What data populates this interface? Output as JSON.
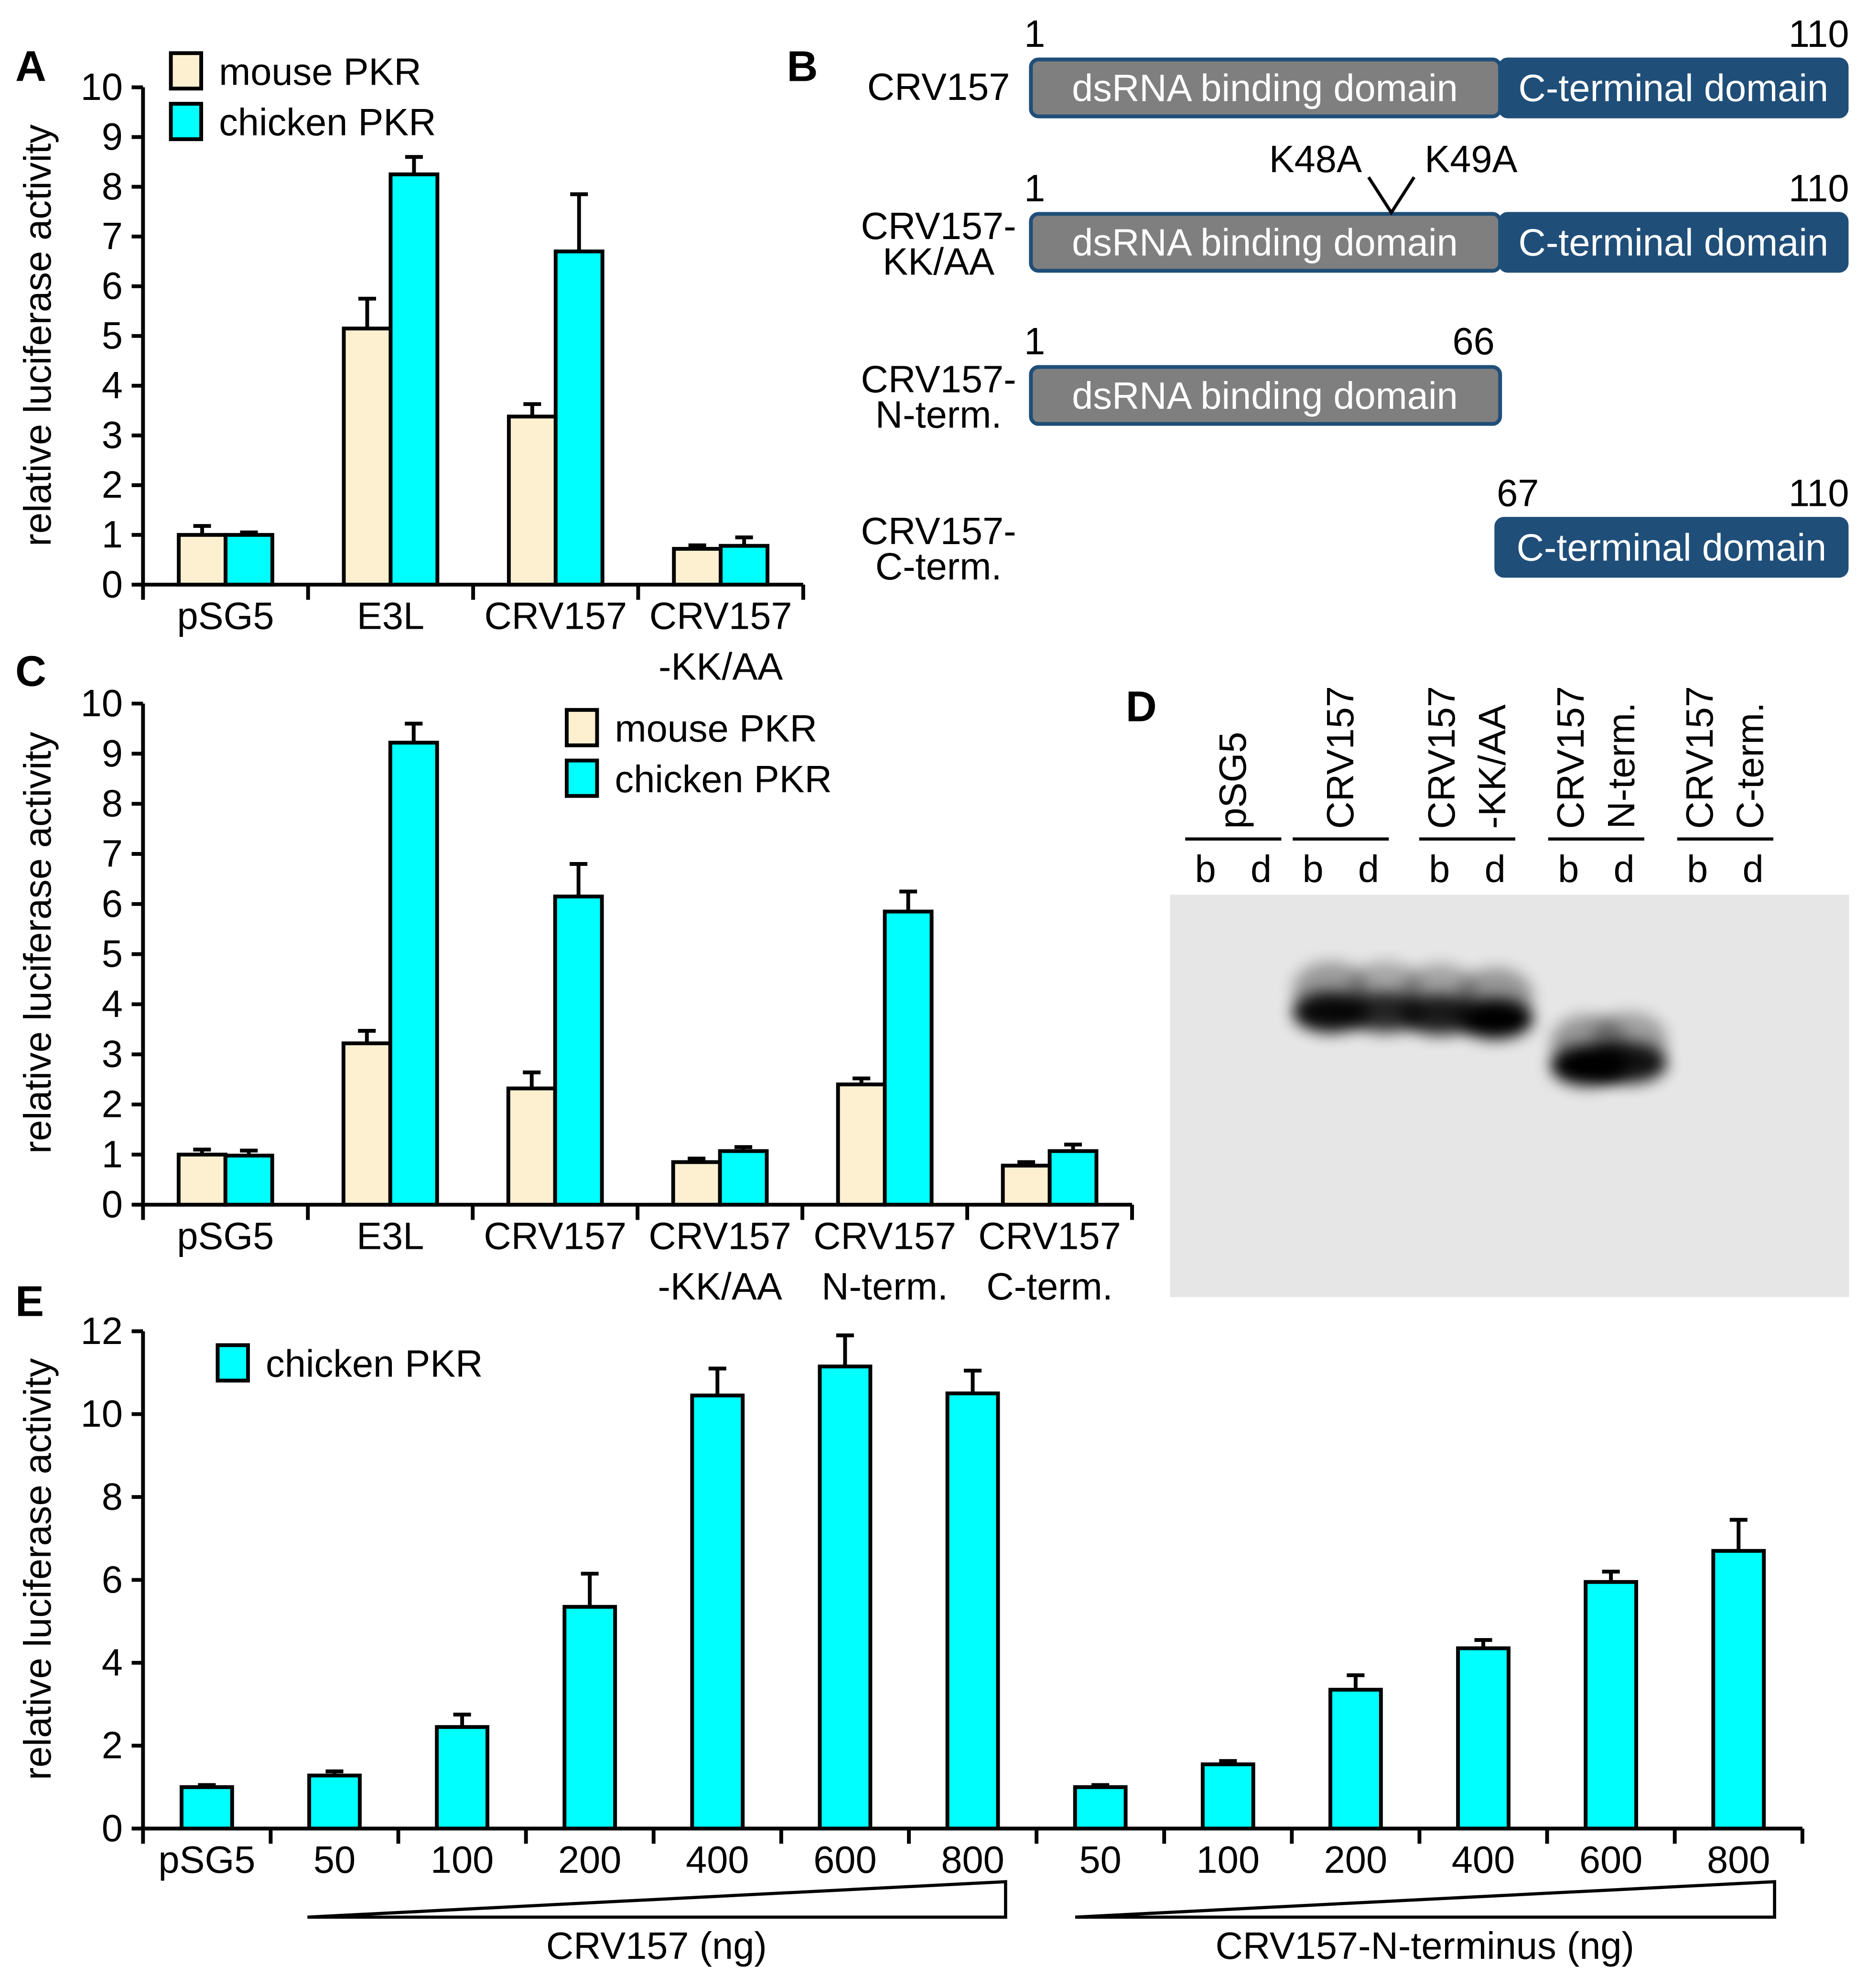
{
  "colors": {
    "mouse": "#fdf0d0",
    "chicken": "#00ffff",
    "gray_domain": "#7f7f7f",
    "blue_domain": "#1f4e79",
    "blot_bg": "#e6e6e6"
  },
  "chart_data": [
    {
      "panel": "A",
      "type": "bar",
      "ylabel": "relative luciferase activity",
      "ylim": [
        0,
        10
      ],
      "yticks": [
        0,
        1,
        2,
        3,
        4,
        5,
        6,
        7,
        8,
        9,
        10
      ],
      "categories": [
        [
          "pSG5"
        ],
        [
          "E3L"
        ],
        [
          "CRV157"
        ],
        [
          "CRV157",
          "-KK/AA"
        ]
      ],
      "legend": "top-left",
      "series": [
        {
          "name": "mouse PKR",
          "values": [
            1.0,
            5.15,
            3.38,
            0.72
          ],
          "errors": [
            0.18,
            0.6,
            0.25,
            0.07
          ]
        },
        {
          "name": "chicken PKR",
          "values": [
            1.0,
            8.25,
            6.7,
            0.78
          ],
          "errors": [
            0.05,
            0.35,
            1.15,
            0.17
          ]
        }
      ]
    },
    {
      "panel": "C",
      "type": "bar",
      "ylabel": "relative luciferase activity",
      "ylim": [
        0,
        10
      ],
      "yticks": [
        0,
        1,
        2,
        3,
        4,
        5,
        6,
        7,
        8,
        9,
        10
      ],
      "categories": [
        [
          "pSG5"
        ],
        [
          "E3L"
        ],
        [
          "CRV157"
        ],
        [
          "CRV157",
          "-KK/AA"
        ],
        [
          "CRV157",
          "N-term."
        ],
        [
          "CRV157",
          "C-term."
        ]
      ],
      "legend": "top-center",
      "series": [
        {
          "name": "mouse PKR",
          "values": [
            1.0,
            3.22,
            2.32,
            0.85,
            2.4,
            0.78
          ],
          "errors": [
            0.1,
            0.25,
            0.32,
            0.07,
            0.12,
            0.07
          ]
        },
        {
          "name": "chicken PKR",
          "values": [
            0.98,
            9.22,
            6.15,
            1.07,
            5.85,
            1.07
          ],
          "errors": [
            0.1,
            0.38,
            0.65,
            0.08,
            0.4,
            0.13
          ]
        }
      ]
    },
    {
      "panel": "E",
      "type": "bar",
      "ylabel": "relative luciferase activity",
      "ylim": [
        0,
        12
      ],
      "yticks": [
        0,
        2,
        4,
        6,
        8,
        10,
        12
      ],
      "categories": [
        [
          "pSG5"
        ],
        [
          "50"
        ],
        [
          "100"
        ],
        [
          "200"
        ],
        [
          "400"
        ],
        [
          "600"
        ],
        [
          "800"
        ],
        [
          "50"
        ],
        [
          "100"
        ],
        [
          "200"
        ],
        [
          "400"
        ],
        [
          "600"
        ],
        [
          "800"
        ]
      ],
      "groups": [
        "CRV157 (ng)",
        "CRV157-N-terminus (ng)"
      ],
      "legend": "top-left",
      "series": [
        {
          "name": "chicken PKR",
          "values": [
            1.0,
            1.28,
            2.45,
            5.35,
            10.45,
            11.15,
            10.5,
            1.0,
            1.55,
            3.35,
            4.35,
            5.95,
            6.7
          ],
          "errors": [
            0.05,
            0.1,
            0.3,
            0.8,
            0.65,
            0.75,
            0.55,
            0.05,
            0.08,
            0.35,
            0.2,
            0.25,
            0.75
          ]
        }
      ]
    }
  ],
  "panelB": {
    "label": "B",
    "rows": [
      {
        "name": "CRV157",
        "start": "1",
        "end": "110"
      },
      {
        "name": "CRV157-",
        "name2": "KK/AA",
        "start": "1",
        "end": "110",
        "mut1": "K48A",
        "mut2": "K49A"
      },
      {
        "name": "CRV157-",
        "name2": "N-term.",
        "start": "1",
        "end": "66"
      },
      {
        "name": "CRV157-",
        "name2": "C-term.",
        "start": "67",
        "end": "110"
      }
    ],
    "dsrna": "dsRNA binding domain",
    "cterm": "C-terminal domain"
  },
  "panelD": {
    "label": "D",
    "lanes": [
      [
        "pSG5"
      ],
      [
        "CRV157"
      ],
      [
        "CRV157",
        "-KK/AA"
      ],
      [
        "CRV157",
        "N-term."
      ],
      [
        "CRV157",
        "C-term."
      ]
    ],
    "b": "b",
    "d": "d"
  },
  "labels": {
    "A": "A",
    "C": "C",
    "E": "E"
  }
}
